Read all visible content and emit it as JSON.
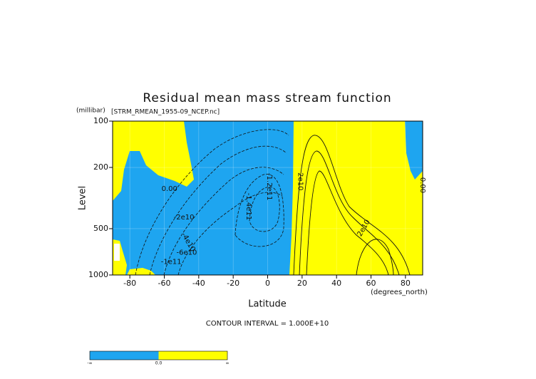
{
  "chart_data": {
    "type": "contour",
    "title": "Residual mean mass stream function",
    "subtitle": "[STRM_RMEAN_1955-09_NCEP.nc]",
    "y_unit": "(millibar)",
    "ylabel": "Level",
    "xlabel": "Latitude",
    "x_unit": "(degrees_north)",
    "footer": "CONTOUR INTERVAL = 1.000E+10",
    "xlim": [
      -90,
      90
    ],
    "xticks": [
      -80,
      -60,
      -40,
      -20,
      0,
      20,
      40,
      60,
      80
    ],
    "ylim": [
      1000,
      100
    ],
    "yticks": [
      100,
      200,
      500,
      1000
    ],
    "yscale": "log",
    "grid": true,
    "fill_colors": [
      "#1ea5f0",
      "#ffff00"
    ],
    "colorbar_labels": [
      "-∞",
      "0.0",
      "∞"
    ],
    "contour_labels": [
      {
        "text": "0.00",
        "x": -57,
        "y": 275
      },
      {
        "text": "-2e10",
        "x": -48.6,
        "y": 422
      },
      {
        "text": "-4e10",
        "x": -46,
        "y": 612
      },
      {
        "text": "-6e10",
        "x": -47,
        "y": 716
      },
      {
        "text": "-1e11",
        "x": -56,
        "y": 823
      },
      {
        "text": "-1.4e11",
        "x": -11,
        "y": 359
      },
      {
        "text": "-1.2e11",
        "x": 1,
        "y": 267
      },
      {
        "text": "2e10",
        "x": 19,
        "y": 247
      },
      {
        "text": "2e10",
        "x": 55.7,
        "y": 495
      },
      {
        "text": "0.00",
        "x": 90,
        "y": 261
      }
    ]
  }
}
